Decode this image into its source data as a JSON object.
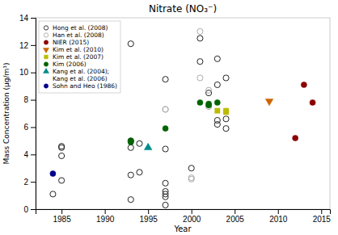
{
  "chart_data": {
    "type": "scatter",
    "title": "Nitrate (NO₃⁻)",
    "x_label": "Year",
    "y_label": "Mass Concentration (μg/m³)",
    "xlim": [
      1982,
      2016
    ],
    "ylim": [
      0,
      14
    ],
    "xticks": [
      1985,
      1990,
      1995,
      2000,
      2005,
      2010,
      2015
    ],
    "yticks": [
      0,
      2,
      4,
      6,
      8,
      10,
      12,
      14
    ],
    "grid": false,
    "legend": "upper left",
    "series": [
      {
        "name": "Hong et al. (2008)",
        "color": "#222222",
        "marker": "circle-open",
        "x": [
          1984,
          1985,
          1985,
          1985,
          1985,
          1993,
          1993,
          1993,
          1993,
          1993,
          1994,
          1994,
          1997,
          1997,
          1997,
          1997,
          1997,
          1997,
          1997,
          2000,
          2001,
          2001,
          2002,
          2003,
          2003,
          2003,
          2003,
          2004,
          2004,
          2004
        ],
        "values": [
          1.1,
          2.1,
          3.9,
          4.6,
          4.5,
          0.7,
          2.5,
          4.5,
          5.0,
          12.1,
          2.7,
          4.8,
          1.9,
          1.3,
          1.1,
          0.9,
          0.3,
          4.4,
          9.5,
          3.0,
          12.5,
          10.8,
          8.5,
          11.0,
          9.1,
          6.2,
          6.5,
          5.9,
          6.6,
          9.6
        ]
      },
      {
        "name": "Han et al. (2008)",
        "color": "#aaaaaa",
        "marker": "circle-open",
        "x": [
          1997,
          1997,
          2000,
          2000,
          2001,
          2001,
          2002,
          2002
        ],
        "values": [
          7.3,
          7.3,
          2.3,
          2.2,
          13.0,
          9.6,
          8.7,
          7.5
        ]
      },
      {
        "name": "NIER (2015)",
        "color": "#8B0000",
        "marker": "circle",
        "x": [
          2012,
          2013,
          2014
        ],
        "values": [
          5.2,
          9.1,
          7.8
        ]
      },
      {
        "name": "Kim et al. (2010)",
        "color": "#CC6600",
        "marker": "triangle-down",
        "x": [
          2009
        ],
        "values": [
          7.9
        ]
      },
      {
        "name": "Kim et al. (2007)",
        "color": "#BBBB00",
        "marker": "square",
        "x": [
          2003,
          2004,
          2004
        ],
        "values": [
          7.2,
          7.1,
          7.2
        ]
      },
      {
        "name": "Kim (2006)",
        "color": "#006400",
        "marker": "circle",
        "x": [
          1993,
          1993,
          1997,
          2001,
          2002,
          2002,
          2003
        ],
        "values": [
          5.0,
          4.9,
          5.9,
          7.8,
          7.6,
          7.7,
          7.8
        ]
      },
      {
        "name": "Kang et al. (2004);\nKang et al. (2006)",
        "color": "#008B8B",
        "marker": "triangle-up",
        "x": [
          1995
        ],
        "values": [
          4.5
        ]
      },
      {
        "name": "Sohn and Heo (1986)",
        "color": "#00008B",
        "marker": "circle",
        "x": [
          1984
        ],
        "values": [
          2.6
        ]
      }
    ]
  }
}
